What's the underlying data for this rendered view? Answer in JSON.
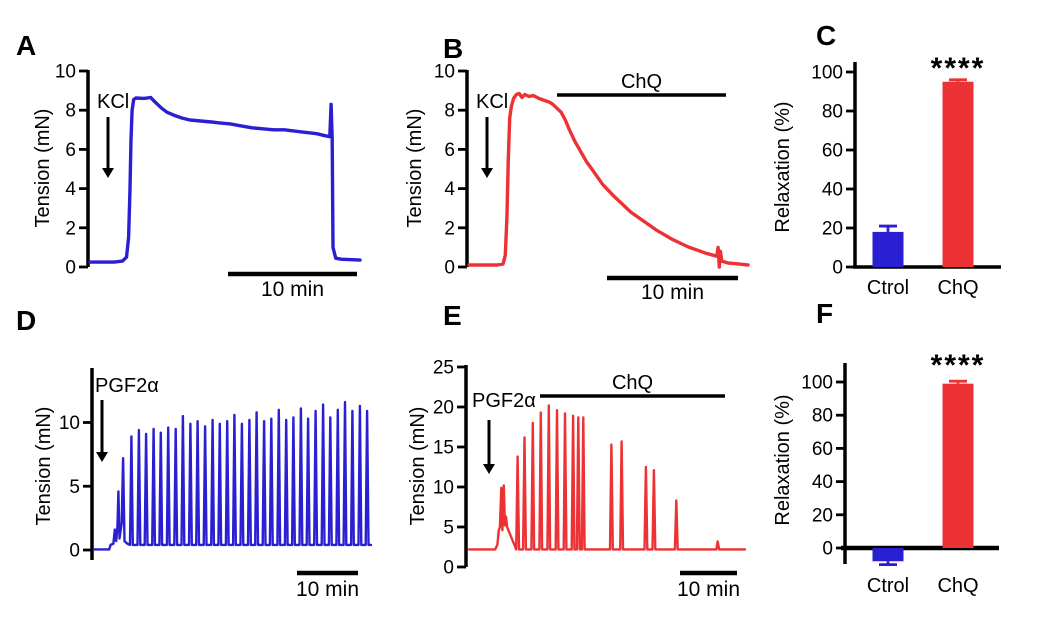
{
  "colors": {
    "blue": "#2a1fd2",
    "red": "#ec3235",
    "black": "#000000",
    "background": "#ffffff"
  },
  "chart_data": [
    {
      "panel": "A",
      "type": "line",
      "color": "blue",
      "ylabel": "Tension (mN)",
      "yticks": [
        0,
        2,
        4,
        6,
        8,
        10
      ],
      "ylim": [
        0,
        10
      ],
      "stimulus_label": "KCl",
      "scalebar_label": "10 min",
      "series": [
        {
          "name": "KCl contraction control trace",
          "points": [
            [
              0.0,
              0.25
            ],
            [
              0.09,
              0.25
            ],
            [
              0.12,
              0.3
            ],
            [
              0.135,
              0.5
            ],
            [
              0.143,
              1.5
            ],
            [
              0.148,
              4.0
            ],
            [
              0.152,
              6.5
            ],
            [
              0.156,
              8.0
            ],
            [
              0.162,
              8.55
            ],
            [
              0.17,
              8.62
            ],
            [
              0.2,
              8.6
            ],
            [
              0.225,
              8.65
            ],
            [
              0.235,
              8.5
            ],
            [
              0.25,
              8.3
            ],
            [
              0.265,
              8.1
            ],
            [
              0.285,
              7.9
            ],
            [
              0.31,
              7.75
            ],
            [
              0.34,
              7.6
            ],
            [
              0.37,
              7.5
            ],
            [
              0.41,
              7.45
            ],
            [
              0.45,
              7.4
            ],
            [
              0.48,
              7.35
            ],
            [
              0.52,
              7.3
            ],
            [
              0.56,
              7.2
            ],
            [
              0.6,
              7.1
            ],
            [
              0.64,
              7.05
            ],
            [
              0.68,
              7.0
            ],
            [
              0.72,
              7.0
            ],
            [
              0.78,
              6.9
            ],
            [
              0.84,
              6.8
            ],
            [
              0.87,
              6.7
            ],
            [
              0.888,
              6.65
            ],
            [
              0.893,
              8.3
            ],
            [
              0.897,
              6.5
            ],
            [
              0.9,
              1.0
            ],
            [
              0.91,
              0.45
            ],
            [
              0.93,
              0.4
            ],
            [
              1.0,
              0.35
            ]
          ]
        }
      ]
    },
    {
      "panel": "B",
      "type": "line",
      "color": "red",
      "ylabel": "Tension (mN)",
      "yticks": [
        0,
        2,
        4,
        6,
        8,
        10
      ],
      "ylim": [
        0,
        10
      ],
      "stimulus_label": "KCl",
      "treatment_label": "ChQ",
      "scalebar_label": "10 min",
      "series": [
        {
          "name": "KCl contraction with ChQ relaxation trace",
          "points": [
            [
              0.0,
              0.1
            ],
            [
              0.1,
              0.1
            ],
            [
              0.122,
              0.15
            ],
            [
              0.13,
              0.6
            ],
            [
              0.136,
              2.5
            ],
            [
              0.141,
              5.5
            ],
            [
              0.146,
              7.6
            ],
            [
              0.152,
              8.2
            ],
            [
              0.16,
              8.6
            ],
            [
              0.17,
              8.8
            ],
            [
              0.18,
              8.85
            ],
            [
              0.19,
              8.65
            ],
            [
              0.2,
              8.8
            ],
            [
              0.215,
              8.7
            ],
            [
              0.23,
              8.75
            ],
            [
              0.25,
              8.6
            ],
            [
              0.27,
              8.5
            ],
            [
              0.29,
              8.4
            ],
            [
              0.3,
              8.3
            ],
            [
              0.315,
              8.1
            ],
            [
              0.33,
              7.9
            ],
            [
              0.345,
              7.5
            ],
            [
              0.36,
              7.0
            ],
            [
              0.38,
              6.4
            ],
            [
              0.4,
              5.9
            ],
            [
              0.42,
              5.4
            ],
            [
              0.44,
              5.0
            ],
            [
              0.46,
              4.6
            ],
            [
              0.48,
              4.2
            ],
            [
              0.5,
              3.9
            ],
            [
              0.52,
              3.6
            ],
            [
              0.55,
              3.2
            ],
            [
              0.58,
              2.8
            ],
            [
              0.61,
              2.5
            ],
            [
              0.64,
              2.2
            ],
            [
              0.67,
              1.9
            ],
            [
              0.7,
              1.65
            ],
            [
              0.73,
              1.4
            ],
            [
              0.76,
              1.2
            ],
            [
              0.79,
              1.0
            ],
            [
              0.82,
              0.85
            ],
            [
              0.85,
              0.7
            ],
            [
              0.875,
              0.6
            ],
            [
              0.888,
              0.55
            ],
            [
              0.893,
              1.0
            ],
            [
              0.897,
              0.0
            ],
            [
              0.901,
              0.8
            ],
            [
              0.906,
              0.3
            ],
            [
              0.93,
              0.2
            ],
            [
              0.97,
              0.15
            ],
            [
              1.0,
              0.1
            ]
          ]
        }
      ]
    },
    {
      "panel": "C",
      "type": "bar",
      "ylabel": "Relaxation (%)",
      "yticks": [
        0,
        20,
        40,
        60,
        80,
        100
      ],
      "ylim": [
        0,
        100
      ],
      "categories": [
        "Ctrol",
        "ChQ"
      ],
      "values": [
        18,
        95
      ],
      "errors": [
        3,
        1
      ],
      "bar_colors": [
        "blue",
        "red"
      ],
      "significance": "****",
      "significance_on": "ChQ"
    },
    {
      "panel": "D",
      "type": "spike-train",
      "color": "blue",
      "ylabel": "Tension (mN)",
      "yticks": [
        0,
        5,
        10
      ],
      "ylim": [
        0,
        15
      ],
      "stimulus_label": "PGF2α",
      "scalebar_label": "10 min",
      "baseline": 0.4,
      "pre_points": [
        [
          0,
          0.05
        ],
        [
          0.055,
          0.05
        ],
        [
          0.06,
          0.4
        ],
        [
          0.07,
          0.5
        ],
        [
          0.075,
          1.6
        ],
        [
          0.08,
          0.7
        ],
        [
          0.085,
          1.9
        ],
        [
          0.088,
          4.6
        ],
        [
          0.092,
          0.9
        ],
        [
          0.1,
          2.1
        ],
        [
          0.105,
          7.2
        ],
        [
          0.11,
          0.7
        ],
        [
          0.12,
          0.5
        ]
      ],
      "spikes": [
        [
          0.135,
          8.9
        ],
        [
          0.162,
          9.4
        ],
        [
          0.188,
          9.1
        ],
        [
          0.215,
          9.5
        ],
        [
          0.241,
          9.2
        ],
        [
          0.268,
          9.6
        ],
        [
          0.295,
          9.5
        ],
        [
          0.321,
          10.5
        ],
        [
          0.348,
          9.9
        ],
        [
          0.374,
          10.1
        ],
        [
          0.401,
          9.7
        ],
        [
          0.428,
          10.2
        ],
        [
          0.454,
          9.9
        ],
        [
          0.481,
          10.1
        ],
        [
          0.507,
          10.6
        ],
        [
          0.534,
          9.9
        ],
        [
          0.561,
          10.2
        ],
        [
          0.587,
          10.8
        ],
        [
          0.614,
          10.1
        ],
        [
          0.64,
          10.3
        ],
        [
          0.667,
          11.0
        ],
        [
          0.694,
          10.2
        ],
        [
          0.72,
          10.4
        ],
        [
          0.747,
          11.1
        ],
        [
          0.773,
          10.3
        ],
        [
          0.8,
          10.9
        ],
        [
          0.827,
          11.4
        ],
        [
          0.853,
          10.4
        ],
        [
          0.88,
          11.0
        ],
        [
          0.906,
          11.6
        ],
        [
          0.933,
          10.9
        ],
        [
          0.96,
          11.3
        ],
        [
          0.986,
          10.9
        ]
      ]
    },
    {
      "panel": "E",
      "type": "spike-train",
      "color": "red",
      "ylabel": "Tension (mN)",
      "yticks": [
        0,
        5,
        10,
        15,
        20,
        25
      ],
      "ylim": [
        0,
        25
      ],
      "stimulus_label": "PGF2α",
      "treatment_label": "ChQ",
      "scalebar_label": "10 min",
      "baseline": 2.2,
      "pre_points": [
        [
          0,
          2.2
        ],
        [
          0.095,
          2.2
        ],
        [
          0.103,
          2.8
        ],
        [
          0.108,
          4.6
        ],
        [
          0.112,
          5.0
        ],
        [
          0.117,
          9.9
        ],
        [
          0.121,
          4.6
        ],
        [
          0.126,
          10.2
        ],
        [
          0.13,
          5.2
        ],
        [
          0.134,
          6.3
        ],
        [
          0.138,
          5.0
        ]
      ],
      "spikes": [
        [
          0.176,
          13.8
        ],
        [
          0.201,
          16.2
        ],
        [
          0.231,
          18.0
        ],
        [
          0.26,
          19.3
        ],
        [
          0.289,
          20.2
        ],
        [
          0.319,
          19.6
        ],
        [
          0.348,
          19.2
        ],
        [
          0.377,
          18.9
        ],
        [
          0.396,
          18.7
        ],
        [
          0.414,
          18.7
        ],
        [
          0.516,
          15.3
        ],
        [
          0.553,
          15.7
        ],
        [
          0.641,
          12.5
        ],
        [
          0.67,
          12.1
        ],
        [
          0.751,
          8.3
        ],
        [
          0.901,
          3.2
        ]
      ]
    },
    {
      "panel": "F",
      "type": "bar",
      "ylabel": "Relaxation (%)",
      "yticks": [
        0,
        20,
        40,
        60,
        80,
        100
      ],
      "ylim": [
        -12,
        100
      ],
      "categories": [
        "Ctrol",
        "ChQ"
      ],
      "values": [
        -8,
        99
      ],
      "errors": [
        2,
        1.5
      ],
      "bar_colors": [
        "blue",
        "red"
      ],
      "significance": "****",
      "significance_on": "ChQ"
    }
  ]
}
